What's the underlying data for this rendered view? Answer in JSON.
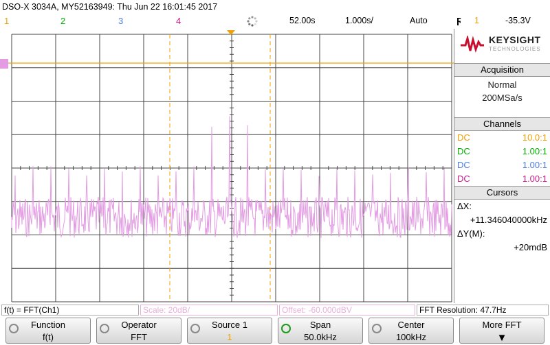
{
  "header": {
    "title": "DSO-X 3034A, MY52163949: Thu Jun 22 16:01:45 2017",
    "channels": [
      {
        "num": "1",
        "color": "#f0a000"
      },
      {
        "num": "2",
        "color": "#00b000"
      },
      {
        "num": "3",
        "color": "#4a7ce0"
      },
      {
        "num": "4",
        "color": "#cc1a8a"
      }
    ],
    "timebase": "52.00s",
    "time_per_div": "1.000s/",
    "trigger_mode": "Auto",
    "trigger_channel": "1",
    "trigger_level": "-35.3V"
  },
  "brand": {
    "name": "KEYSIGHT",
    "sub": "TECHNOLOGIES"
  },
  "acquisition": {
    "heading": "Acquisition",
    "mode": "Normal",
    "rate": "200MSa/s"
  },
  "channels": {
    "heading": "Channels",
    "rows": [
      {
        "coupling": "DC",
        "probe": "10.0:1",
        "color": "#f0a000"
      },
      {
        "coupling": "DC",
        "probe": "1.00:1",
        "color": "#00b000"
      },
      {
        "coupling": "DC",
        "probe": "1.00:1",
        "color": "#4a7ce0"
      },
      {
        "coupling": "DC",
        "probe": "1.00:1",
        "color": "#cc1a8a"
      }
    ]
  },
  "cursors": {
    "heading": "Cursors",
    "dx_label": "ΔX:",
    "dx_value": "+11.346040000kHz",
    "dy_label": "ΔY(M):",
    "dy_value": "+20mdB"
  },
  "status_line": {
    "function": "f(t) = FFT(Ch1)",
    "scale": "Scale: 20dB/",
    "offset": "Offset: -60.000dBV",
    "resolution": "FFT Resolution: 47.7Hz"
  },
  "softkeys": [
    {
      "label": "Function",
      "value": "f(t)"
    },
    {
      "label": "Operator",
      "value": "FFT"
    },
    {
      "label": "Source 1",
      "value": "1"
    },
    {
      "label": "Span",
      "value": "50.0kHz"
    },
    {
      "label": "Center",
      "value": "100kHz"
    },
    {
      "label": "More FFT",
      "value": "▼"
    }
  ],
  "trace_color": "#e39be3"
}
